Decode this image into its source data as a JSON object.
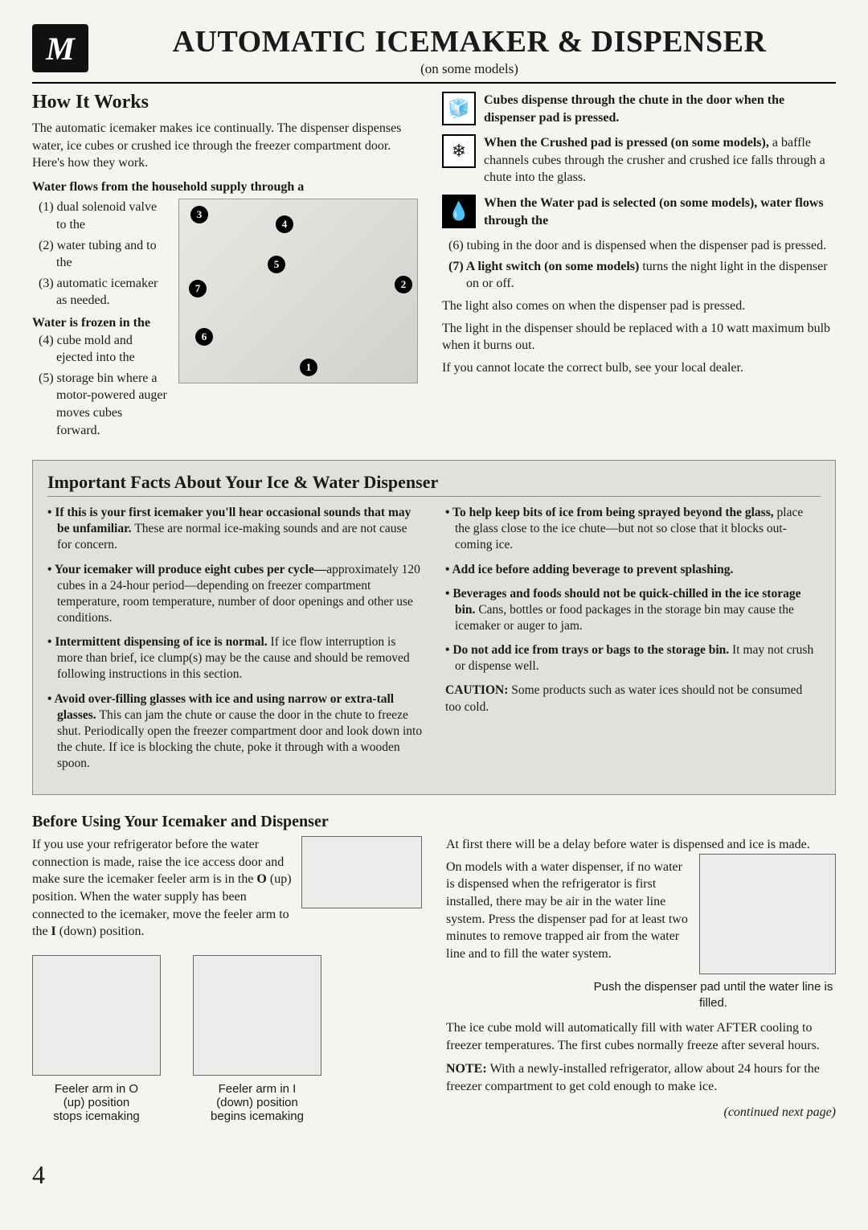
{
  "page_number": "4",
  "header": {
    "logo_text": "M",
    "title": "AUTOMATIC ICEMAKER & DISPENSER",
    "subtitle": "(on some models)"
  },
  "how": {
    "heading": "How It Works",
    "intro": "The automatic icemaker makes ice continually. The dispenser dispenses water, ice cubes or crushed ice through the freezer compartment door. Here's how they work.",
    "flows_heading": "Water flows from the household supply through a",
    "item1": "(1) dual solenoid valve to the",
    "item2": "(2) water tubing and to the",
    "item3": "(3) automatic icemaker as needed.",
    "frozen_heading": "Water is frozen in the",
    "item4": "(4) cube mold and ejected into the",
    "item5": "(5) storage bin where a motor-powered auger moves cubes forward.",
    "cubes_text": "Cubes dispense through the chute in the door when the dispenser pad is pressed.",
    "crushed_text": "When the Crushed pad is pressed (on some models), a baffle channels cubes through the crusher and crushed ice falls through a chute into the glass.",
    "water_text": "When the Water pad is selected (on some models), water flows through the",
    "item6": "(6) tubing in the door and is dispensed when the dispenser pad is pressed.",
    "item7_lead": "(7) A light switch (on some models) ",
    "item7_rest": "turns the night light in the dispenser on or off.",
    "light_para1": "The light also comes on when the dispenser pad is pressed.",
    "light_para2": "The light in the dispenser should be replaced with a 10 watt maximum bulb when it burns out.",
    "light_para3": "If you cannot locate the correct bulb, see your local dealer.",
    "dots": [
      "1",
      "2",
      "3",
      "4",
      "5",
      "6",
      "7"
    ]
  },
  "facts": {
    "heading": "Important Facts About Your Ice & Water Dispenser",
    "left": {
      "i1_lead": "If this is your first icemaker you'll hear occasional sounds that may be unfamiliar. ",
      "i1_rest": "These are normal ice-making sounds and are not cause for concern.",
      "i2_lead": "Your icemaker will produce eight cubes per cycle—",
      "i2_rest": "approximately 120 cubes in a 24-hour period—depending on freezer compartment temperature, room temperature, number of door openings and other use conditions.",
      "i3_lead": "Intermittent dispensing of ice is normal. ",
      "i3_rest": "If ice flow interruption is more than brief, ice clump(s) may be the cause and should be removed following instructions in this section.",
      "i4_lead": "Avoid over-filling glasses with ice and using narrow or extra-tall glasses. ",
      "i4_rest": "This can jam the chute or cause the door in the chute to freeze shut. Periodically open the freezer compartment door and look down into the chute. If ice is blocking the chute, poke it through with a wooden spoon."
    },
    "right": {
      "i1_lead": "To help keep bits of ice from being sprayed beyond the glass, ",
      "i1_rest": "place the glass close to the ice chute—but not so close that it blocks out-coming ice.",
      "i2": "Add ice before adding beverage to prevent splashing.",
      "i3_lead": "Beverages and foods should not be quick-chilled in the ice storage bin. ",
      "i3_rest": "Cans, bottles or food packages in the storage bin may cause the icemaker or auger to jam.",
      "i4_lead": "Do not add ice from trays or bags to the storage bin. ",
      "i4_rest": "It may not crush or dispense well.",
      "caution_lead": "CAUTION: ",
      "caution_rest": "Some products such as water ices should not be consumed too cold."
    }
  },
  "before": {
    "heading": "Before Using Your Icemaker and Dispenser",
    "left_para_a": "If you use your refrigerator before the water connection is made, raise the ice access door and make sure the icemaker feeler arm is in the ",
    "left_para_b": " (up) position. When the water supply has been connected to the icemaker, move the feeler arm to the ",
    "left_para_c": " (down) position.",
    "o_sym": "O",
    "i_sym": "I",
    "cap1_line1": "Feeler arm in O",
    "cap1_line2": "(up) position",
    "cap1_line3": "stops icemaking",
    "cap2_line1": "Feeler arm in I",
    "cap2_line2": "(down) position",
    "cap2_line3": "begins icemaking",
    "right_p1": "At first there will be a delay before water is dispensed and ice is made.",
    "right_p2": "On models with a water dispenser, if no water is dispensed when the refrigerator is first installed, there may be air in the water line system. Press the dispenser pad for at least two minutes to remove trapped air from the water line and to fill the water system.",
    "right_cap": "Push the dispenser pad until the water line is filled.",
    "right_p3": "The ice cube mold will automatically fill with water AFTER cooling to freezer temperatures. The first cubes normally freeze after several hours.",
    "right_note_lead": "NOTE: ",
    "right_note_rest": "With a newly-installed refrigerator, allow about 24 hours for the freezer compartment to get cold enough to make ice.",
    "continued": "(continued next page)"
  },
  "colors": {
    "bg": "#f5f4f0",
    "text": "#1a1a1a",
    "box_bg": "#e2e0da"
  }
}
